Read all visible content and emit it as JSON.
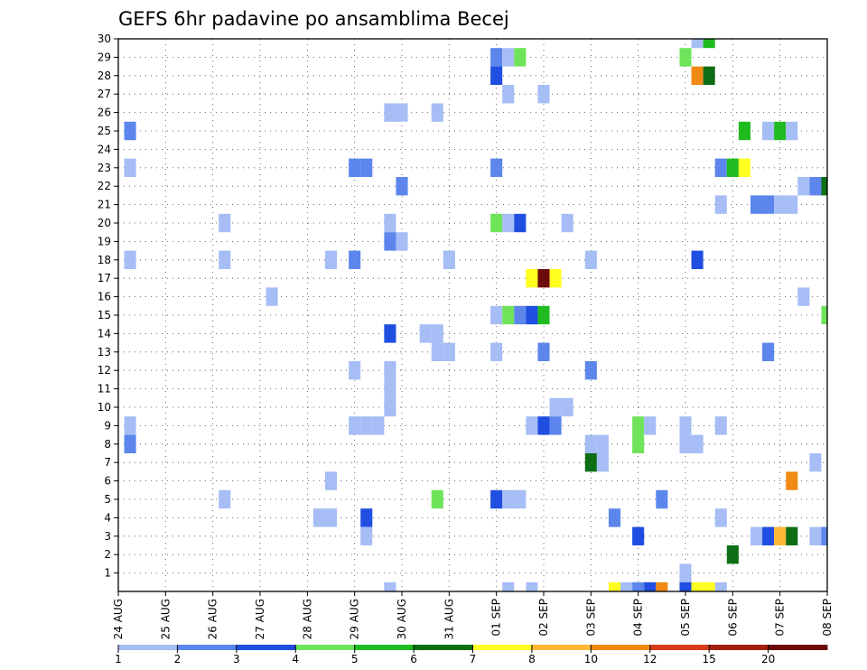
{
  "chart_data": {
    "type": "heatmap",
    "title": "GEFS 6hr padavine po ansamblima Becej",
    "x_labels": [
      "24 AUG",
      "25 AUG",
      "26 AUG",
      "27 AUG",
      "28 AUG",
      "29 AUG",
      "30 AUG",
      "31 AUG",
      "01 SEP",
      "02 SEP",
      "03 SEP",
      "04 SEP",
      "05 SEP",
      "06 SEP",
      "07 SEP",
      "08 SEP"
    ],
    "y_labels": [
      "1",
      "2",
      "3",
      "4",
      "5",
      "6",
      "7",
      "8",
      "9",
      "10",
      "11",
      "12",
      "13",
      "14",
      "15",
      "16",
      "17",
      "18",
      "19",
      "20",
      "21",
      "22",
      "23",
      "24",
      "25",
      "26",
      "27",
      "28",
      "29",
      "30"
    ],
    "x_range": [
      0,
      60
    ],
    "y_range": [
      0,
      30
    ],
    "grid": true,
    "legend": {
      "placement": "bottom",
      "labels": [
        "1",
        "2",
        "3",
        "4",
        "5",
        "6",
        "7",
        "8",
        "10",
        "12",
        "15",
        "20"
      ],
      "colors": [
        "#a6bdf5",
        "#5c86ec",
        "#1f4ee0",
        "#6fe35a",
        "#20bb20",
        "#0d6e15",
        "#ffff1f",
        "#ffb834",
        "#f08a14",
        "#d83a1a",
        "#a51f13",
        "#6b0b0b"
      ]
    },
    "cells": [
      {
        "x": 1,
        "y": 25,
        "v": 2
      },
      {
        "x": 1,
        "y": 23,
        "v": 1
      },
      {
        "x": 1,
        "y": 18,
        "v": 1
      },
      {
        "x": 1,
        "y": 9,
        "v": 1
      },
      {
        "x": 1,
        "y": 8,
        "v": 2
      },
      {
        "x": 9,
        "y": 20,
        "v": 1
      },
      {
        "x": 9,
        "y": 18,
        "v": 1
      },
      {
        "x": 9,
        "y": 5,
        "v": 1
      },
      {
        "x": 13,
        "y": 16,
        "v": 1
      },
      {
        "x": 18,
        "y": 18,
        "v": 1
      },
      {
        "x": 18,
        "y": 6,
        "v": 1
      },
      {
        "x": 17,
        "y": 4,
        "v": 1
      },
      {
        "x": 18,
        "y": 4,
        "v": 1
      },
      {
        "x": 20,
        "y": 23,
        "v": 2
      },
      {
        "x": 21,
        "y": 23,
        "v": 2
      },
      {
        "x": 20,
        "y": 18,
        "v": 2
      },
      {
        "x": 20,
        "y": 12,
        "v": 1
      },
      {
        "x": 20,
        "y": 9,
        "v": 1
      },
      {
        "x": 21,
        "y": 9,
        "v": 1
      },
      {
        "x": 22,
        "y": 9,
        "v": 1
      },
      {
        "x": 21,
        "y": 4,
        "v": 3
      },
      {
        "x": 21,
        "y": 3,
        "v": 1
      },
      {
        "x": 23,
        "y": 26,
        "v": 1
      },
      {
        "x": 24,
        "y": 26,
        "v": 1
      },
      {
        "x": 24,
        "y": 22,
        "v": 2
      },
      {
        "x": 23,
        "y": 20,
        "v": 1
      },
      {
        "x": 23,
        "y": 19,
        "v": 2
      },
      {
        "x": 24,
        "y": 19,
        "v": 1
      },
      {
        "x": 23,
        "y": 14,
        "v": 3
      },
      {
        "x": 23,
        "y": 12,
        "v": 1
      },
      {
        "x": 23,
        "y": 11,
        "v": 1
      },
      {
        "x": 23,
        "y": 10,
        "v": 1
      },
      {
        "x": 23,
        "y": 0,
        "v": 1
      },
      {
        "x": 27,
        "y": 26,
        "v": 1
      },
      {
        "x": 26,
        "y": 14,
        "v": 1
      },
      {
        "x": 27,
        "y": 14,
        "v": 1
      },
      {
        "x": 27,
        "y": 13,
        "v": 1
      },
      {
        "x": 28,
        "y": 13,
        "v": 1
      },
      {
        "x": 27,
        "y": 5,
        "v": 4
      },
      {
        "x": 28,
        "y": 18,
        "v": 1
      },
      {
        "x": 32,
        "y": 29,
        "v": 2
      },
      {
        "x": 33,
        "y": 29,
        "v": 1
      },
      {
        "x": 34,
        "y": 29,
        "v": 4
      },
      {
        "x": 32,
        "y": 28,
        "v": 3
      },
      {
        "x": 33,
        "y": 27,
        "v": 1
      },
      {
        "x": 32,
        "y": 23,
        "v": 2
      },
      {
        "x": 32,
        "y": 20,
        "v": 4
      },
      {
        "x": 33,
        "y": 20,
        "v": 1
      },
      {
        "x": 34,
        "y": 20,
        "v": 3
      },
      {
        "x": 32,
        "y": 15,
        "v": 1
      },
      {
        "x": 33,
        "y": 15,
        "v": 4
      },
      {
        "x": 34,
        "y": 15,
        "v": 2
      },
      {
        "x": 35,
        "y": 15,
        "v": 3
      },
      {
        "x": 36,
        "y": 15,
        "v": 5
      },
      {
        "x": 32,
        "y": 13,
        "v": 1
      },
      {
        "x": 32,
        "y": 5,
        "v": 3
      },
      {
        "x": 33,
        "y": 5,
        "v": 1
      },
      {
        "x": 34,
        "y": 5,
        "v": 1
      },
      {
        "x": 33,
        "y": 0,
        "v": 1
      },
      {
        "x": 35,
        "y": 0,
        "v": 1
      },
      {
        "x": 36,
        "y": 27,
        "v": 1
      },
      {
        "x": 35,
        "y": 17,
        "v": 7
      },
      {
        "x": 36,
        "y": 17,
        "v": 20
      },
      {
        "x": 37,
        "y": 17,
        "v": 7
      },
      {
        "x": 36,
        "y": 13,
        "v": 2
      },
      {
        "x": 37,
        "y": 10,
        "v": 1
      },
      {
        "x": 38,
        "y": 10,
        "v": 1
      },
      {
        "x": 35,
        "y": 9,
        "v": 1
      },
      {
        "x": 36,
        "y": 9,
        "v": 3
      },
      {
        "x": 37,
        "y": 9,
        "v": 2
      },
      {
        "x": 38,
        "y": 20,
        "v": 1
      },
      {
        "x": 40,
        "y": 18,
        "v": 1
      },
      {
        "x": 40,
        "y": 12,
        "v": 2
      },
      {
        "x": 40,
        "y": 8,
        "v": 1
      },
      {
        "x": 41,
        "y": 8,
        "v": 1
      },
      {
        "x": 40,
        "y": 7,
        "v": 6
      },
      {
        "x": 41,
        "y": 7,
        "v": 1
      },
      {
        "x": 42,
        "y": 4,
        "v": 2
      },
      {
        "x": 44,
        "y": 3,
        "v": 3
      },
      {
        "x": 44,
        "y": 9,
        "v": 4
      },
      {
        "x": 45,
        "y": 9,
        "v": 1
      },
      {
        "x": 44,
        "y": 8,
        "v": 4
      },
      {
        "x": 42,
        "y": 0,
        "v": 7
      },
      {
        "x": 43,
        "y": 0,
        "v": 1
      },
      {
        "x": 44,
        "y": 0,
        "v": 2
      },
      {
        "x": 45,
        "y": 0,
        "v": 3
      },
      {
        "x": 46,
        "y": 0,
        "v": 10
      },
      {
        "x": 46,
        "y": 5,
        "v": 2
      },
      {
        "x": 49,
        "y": 30,
        "v": 1
      },
      {
        "x": 50,
        "y": 30,
        "v": 5
      },
      {
        "x": 48,
        "y": 29,
        "v": 4
      },
      {
        "x": 49,
        "y": 28,
        "v": 10
      },
      {
        "x": 50,
        "y": 28,
        "v": 6
      },
      {
        "x": 48,
        "y": 9,
        "v": 1
      },
      {
        "x": 48,
        "y": 8,
        "v": 1
      },
      {
        "x": 49,
        "y": 8,
        "v": 1
      },
      {
        "x": 48,
        "y": 1,
        "v": 1
      },
      {
        "x": 48,
        "y": 0,
        "v": 3
      },
      {
        "x": 49,
        "y": 0,
        "v": 7
      },
      {
        "x": 50,
        "y": 0,
        "v": 7
      },
      {
        "x": 51,
        "y": 0,
        "v": 1
      },
      {
        "x": 49,
        "y": 18,
        "v": 3
      },
      {
        "x": 51,
        "y": 23,
        "v": 2
      },
      {
        "x": 52,
        "y": 23,
        "v": 5
      },
      {
        "x": 53,
        "y": 23,
        "v": 7
      },
      {
        "x": 51,
        "y": 21,
        "v": 1
      },
      {
        "x": 51,
        "y": 9,
        "v": 1
      },
      {
        "x": 51,
        "y": 4,
        "v": 1
      },
      {
        "x": 52,
        "y": 2,
        "v": 6
      },
      {
        "x": 53,
        "y": 25,
        "v": 5
      },
      {
        "x": 54,
        "y": 21,
        "v": 2
      },
      {
        "x": 55,
        "y": 21,
        "v": 2
      },
      {
        "x": 56,
        "y": 21,
        "v": 1
      },
      {
        "x": 57,
        "y": 21,
        "v": 1
      },
      {
        "x": 55,
        "y": 25,
        "v": 1
      },
      {
        "x": 56,
        "y": 25,
        "v": 5
      },
      {
        "x": 57,
        "y": 25,
        "v": 1
      },
      {
        "x": 55,
        "y": 13,
        "v": 2
      },
      {
        "x": 54,
        "y": 3,
        "v": 1
      },
      {
        "x": 55,
        "y": 3,
        "v": 3
      },
      {
        "x": 56,
        "y": 3,
        "v": 8
      },
      {
        "x": 57,
        "y": 3,
        "v": 6
      },
      {
        "x": 57,
        "y": 6,
        "v": 10
      },
      {
        "x": 58,
        "y": 22,
        "v": 1
      },
      {
        "x": 59,
        "y": 22,
        "v": 2
      },
      {
        "x": 60,
        "y": 22,
        "v": 6
      },
      {
        "x": 58,
        "y": 16,
        "v": 1
      },
      {
        "x": 59,
        "y": 7,
        "v": 1
      },
      {
        "x": 59,
        "y": 3,
        "v": 1
      },
      {
        "x": 60,
        "y": 3,
        "v": 2
      },
      {
        "x": 60,
        "y": 15,
        "v": 4
      }
    ]
  }
}
